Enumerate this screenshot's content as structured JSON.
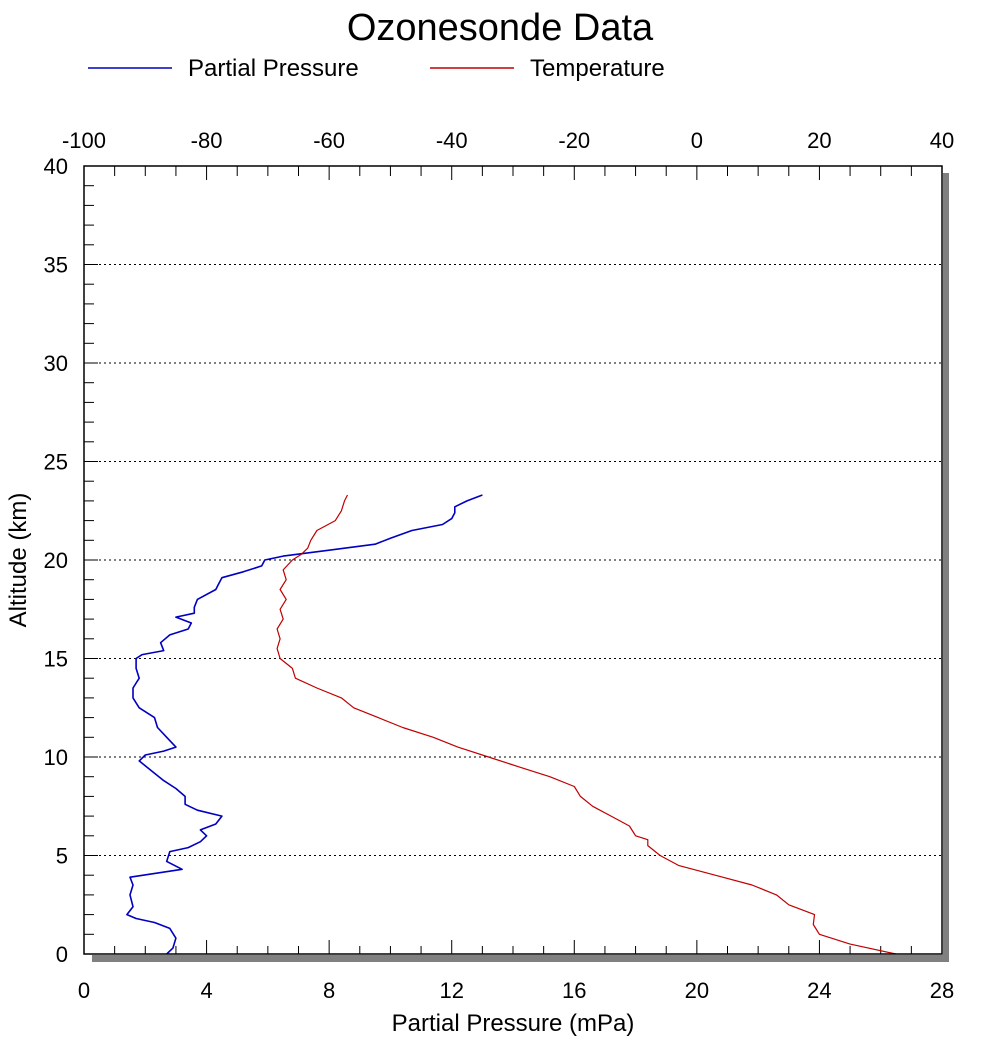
{
  "chart_data": {
    "type": "line",
    "title": "Ozonesonde Data",
    "xlabel": "Partial Pressure (mPa)",
    "ylabel": "Altitude (km)",
    "xlim": [
      0,
      28
    ],
    "ylim": [
      0,
      40
    ],
    "x2lim": [
      -100,
      40
    ],
    "xticks": [
      "0",
      "4",
      "8",
      "12",
      "16",
      "20",
      "24",
      "28"
    ],
    "yticks": [
      "0",
      "5",
      "10",
      "15",
      "20",
      "25",
      "30",
      "35",
      "40"
    ],
    "x2ticks": [
      "-100",
      "-80",
      "-60",
      "-40",
      "-20",
      "0",
      "20",
      "40"
    ],
    "grid": "horizontal dotted lines",
    "legend_position": "top-left",
    "series": [
      {
        "name": "Partial Pressure",
        "color": "#0000c0",
        "axis": "bottom",
        "points": [
          [
            2.7,
            0.0
          ],
          [
            2.9,
            0.3
          ],
          [
            3.0,
            0.8
          ],
          [
            2.8,
            1.3
          ],
          [
            2.3,
            1.6
          ],
          [
            1.7,
            1.8
          ],
          [
            1.4,
            2.0
          ],
          [
            1.6,
            2.4
          ],
          [
            1.5,
            3.0
          ],
          [
            1.6,
            3.5
          ],
          [
            1.5,
            3.9
          ],
          [
            3.2,
            4.3
          ],
          [
            2.7,
            4.7
          ],
          [
            2.8,
            5.2
          ],
          [
            3.4,
            5.4
          ],
          [
            3.8,
            5.7
          ],
          [
            4.0,
            6.0
          ],
          [
            3.8,
            6.3
          ],
          [
            4.3,
            6.6
          ],
          [
            4.5,
            7.0
          ],
          [
            3.7,
            7.3
          ],
          [
            3.3,
            7.6
          ],
          [
            3.3,
            8.0
          ],
          [
            3.0,
            8.4
          ],
          [
            2.6,
            8.8
          ],
          [
            2.2,
            9.3
          ],
          [
            1.8,
            9.8
          ],
          [
            2.0,
            10.1
          ],
          [
            2.6,
            10.3
          ],
          [
            3.0,
            10.5
          ],
          [
            2.7,
            11.0
          ],
          [
            2.4,
            11.5
          ],
          [
            2.3,
            12.0
          ],
          [
            1.8,
            12.5
          ],
          [
            1.6,
            13.0
          ],
          [
            1.6,
            13.5
          ],
          [
            1.8,
            14.0
          ],
          [
            1.7,
            14.5
          ],
          [
            1.7,
            15.0
          ],
          [
            1.9,
            15.2
          ],
          [
            2.6,
            15.4
          ],
          [
            2.5,
            15.8
          ],
          [
            2.8,
            16.2
          ],
          [
            3.4,
            16.5
          ],
          [
            3.5,
            16.8
          ],
          [
            3.0,
            17.1
          ],
          [
            3.6,
            17.3
          ],
          [
            3.6,
            17.6
          ],
          [
            3.7,
            18.0
          ],
          [
            4.3,
            18.5
          ],
          [
            4.4,
            18.8
          ],
          [
            4.5,
            19.1
          ],
          [
            5.2,
            19.4
          ],
          [
            5.8,
            19.7
          ],
          [
            5.9,
            20.0
          ],
          [
            6.5,
            20.2
          ],
          [
            8.0,
            20.5
          ],
          [
            9.5,
            20.8
          ],
          [
            10.0,
            21.1
          ],
          [
            10.7,
            21.5
          ],
          [
            11.7,
            21.8
          ],
          [
            12.0,
            22.1
          ],
          [
            12.1,
            22.4
          ],
          [
            12.1,
            22.7
          ],
          [
            12.5,
            23.0
          ],
          [
            13.0,
            23.3
          ]
        ]
      },
      {
        "name": "Temperature",
        "color": "#c00000",
        "axis": "top",
        "points": [
          [
            32.5,
            0.0
          ],
          [
            25.0,
            0.5
          ],
          [
            20.0,
            1.0
          ],
          [
            19.0,
            1.5
          ],
          [
            19.2,
            2.0
          ],
          [
            15.0,
            2.5
          ],
          [
            13.0,
            3.0
          ],
          [
            9.0,
            3.5
          ],
          [
            3.0,
            4.0
          ],
          [
            -3.0,
            4.5
          ],
          [
            -6.0,
            5.0
          ],
          [
            -8.0,
            5.5
          ],
          [
            -8.0,
            5.8
          ],
          [
            -10.0,
            6.0
          ],
          [
            -11.0,
            6.5
          ],
          [
            -14.0,
            7.0
          ],
          [
            -17.0,
            7.5
          ],
          [
            -19.0,
            8.0
          ],
          [
            -20.0,
            8.5
          ],
          [
            -24.0,
            9.0
          ],
          [
            -29.0,
            9.5
          ],
          [
            -34.0,
            10.0
          ],
          [
            -39.0,
            10.5
          ],
          [
            -43.0,
            11.0
          ],
          [
            -48.0,
            11.5
          ],
          [
            -52.0,
            12.0
          ],
          [
            -56.0,
            12.5
          ],
          [
            -58.0,
            13.0
          ],
          [
            -62.0,
            13.5
          ],
          [
            -65.5,
            14.0
          ],
          [
            -66.0,
            14.5
          ],
          [
            -68.0,
            15.0
          ],
          [
            -68.5,
            15.5
          ],
          [
            -68.0,
            16.0
          ],
          [
            -68.5,
            16.5
          ],
          [
            -67.5,
            17.0
          ],
          [
            -68.0,
            17.5
          ],
          [
            -67.0,
            18.0
          ],
          [
            -68.0,
            18.5
          ],
          [
            -67.0,
            19.0
          ],
          [
            -67.5,
            19.5
          ],
          [
            -66.0,
            20.0
          ],
          [
            -64.5,
            20.3
          ],
          [
            -63.5,
            20.6
          ],
          [
            -63.0,
            21.0
          ],
          [
            -62.0,
            21.5
          ],
          [
            -59.0,
            22.0
          ],
          [
            -58.0,
            22.5
          ],
          [
            -57.5,
            23.0
          ],
          [
            -57.0,
            23.3
          ]
        ]
      }
    ]
  }
}
